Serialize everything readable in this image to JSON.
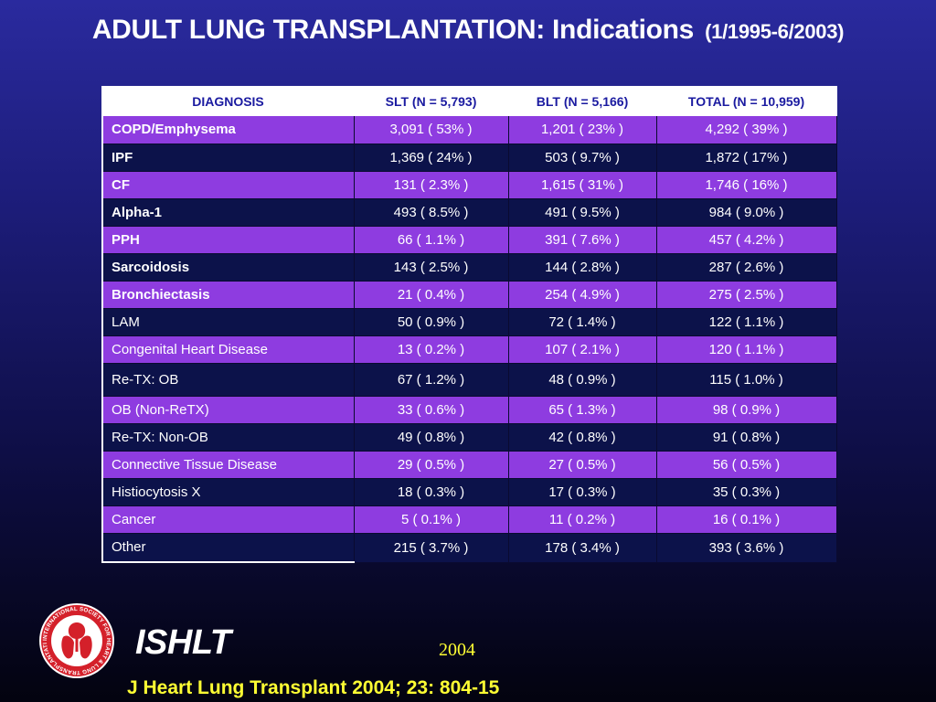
{
  "title": {
    "main": "ADULT LUNG TRANSPLANTATION: Indications",
    "sub": "(1/1995-6/2003)"
  },
  "table": {
    "headers": [
      "DIAGNOSIS",
      "SLT (N = 5,793)",
      "BLT (N = 5,166)",
      "TOTAL (N = 10,959)"
    ],
    "rows": [
      {
        "cells": [
          "COPD/Emphysema",
          "3,091 ( 53% )",
          "1,201 ( 23% )",
          "4,292 ( 39% )"
        ]
      },
      {
        "cells": [
          "IPF",
          "1,369 ( 24% )",
          "503 ( 9.7% )",
          "1,872 ( 17% )"
        ]
      },
      {
        "cells": [
          "CF",
          "131 ( 2.3% )",
          "1,615 ( 31% )",
          "1,746 ( 16% )"
        ]
      },
      {
        "cells": [
          "Alpha-1",
          "493 ( 8.5% )",
          "491 ( 9.5% )",
          "984 ( 9.0% )"
        ]
      },
      {
        "cells": [
          "PPH",
          "66 ( 1.1% )",
          "391 ( 7.6% )",
          "457 ( 4.2% )"
        ]
      },
      {
        "cells": [
          "Sarcoidosis",
          "143 ( 2.5% )",
          "144 ( 2.8% )",
          "287 ( 2.6% )"
        ]
      },
      {
        "cells": [
          "Bronchiectasis",
          "21 ( 0.4% )",
          "254 ( 4.9% )",
          "275 ( 2.5% )"
        ]
      },
      {
        "cells": [
          "LAM",
          "50 ( 0.9% )",
          "72 ( 1.4% )",
          "122 ( 1.1% )"
        ]
      },
      {
        "cells": [
          "Congenital Heart Disease",
          "13 ( 0.2% )",
          "107 ( 2.1% )",
          "120 ( 1.1% )"
        ]
      },
      {
        "cells": [
          "Re-TX: OB",
          "67 ( 1.2% )",
          "48 ( 0.9% )",
          "115 ( 1.0% )"
        ]
      },
      {
        "cells": [
          "OB (Non-ReTX)",
          "33 ( 0.6% )",
          "65 ( 1.3% )",
          "98 ( 0.9% )"
        ]
      },
      {
        "cells": [
          "Re-TX: Non-OB",
          "49 ( 0.8% )",
          "42 ( 0.8% )",
          "91 ( 0.8% )"
        ]
      },
      {
        "cells": [
          "Connective Tissue Disease",
          "29 ( 0.5% )",
          "27 ( 0.5% )",
          "56 ( 0.5% )"
        ]
      },
      {
        "cells": [
          "Histiocytosis X",
          "18 ( 0.3% )",
          "17 ( 0.3% )",
          "35 ( 0.3% )"
        ]
      },
      {
        "cells": [
          "Cancer",
          "5 ( 0.1% )",
          "11 ( 0.2% )",
          "16 ( 0.1% )"
        ]
      },
      {
        "cells": [
          "Other",
          "215 ( 3.7% )",
          "178 ( 3.4% )",
          "393 ( 3.6% )"
        ]
      }
    ]
  },
  "footer": {
    "org": "ISHLT",
    "year": "2004",
    "citation": "J Heart Lung Transplant 2004; 23: 804-15",
    "logo_text": "INTERNATIONAL SOCIETY FOR HEART & LUNG TRANSPLANTATION"
  },
  "colors": {
    "purple_row": "#8e3ce0",
    "navy_row": "#0c124a",
    "header_text": "#1a1aa0",
    "accent_yellow": "#ffff33",
    "logo_red": "#d4202a"
  }
}
